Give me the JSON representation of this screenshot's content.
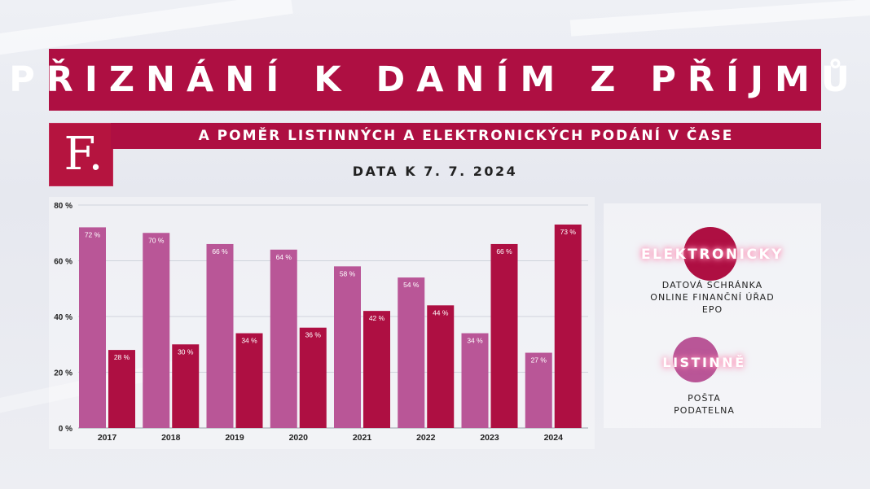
{
  "header": {
    "title": "PŘIZNÁNÍ K DANÍM Z PŘÍJMŮ",
    "subtitle": "A POMĚR LISTINNÝCH A ELEKTRONICKÝCH PODÁNÍ V ČASE",
    "logo": "F.",
    "date": "DATA K 7. 7. 2024"
  },
  "colors": {
    "brand": "#ae0f42",
    "paper": "#b95697",
    "electronic": "#ae0f42"
  },
  "legend": {
    "electronic": {
      "title": "ELEKTRONICKY",
      "lines": [
        "DATOVÁ SCHRÁNKA",
        "ONLINE FINANČNÍ ÚŘAD",
        "EPO"
      ]
    },
    "paper": {
      "title": "LISTINNĚ",
      "lines": [
        "POŠTA",
        "PODATELNA"
      ]
    }
  },
  "chart_data": {
    "type": "bar",
    "categories": [
      "2017",
      "2018",
      "2019",
      "2020",
      "2021",
      "2022",
      "2023",
      "2024"
    ],
    "series": [
      {
        "name": "LISTINNĚ",
        "values": [
          72,
          70,
          66,
          64,
          58,
          54,
          34,
          27
        ],
        "labels": [
          "72 %",
          "70 %",
          "66 %",
          "64 %",
          "58 %",
          "54 %",
          "34 %",
          "27 %"
        ]
      },
      {
        "name": "ELEKTRONICKY",
        "values": [
          28,
          30,
          34,
          36,
          42,
          44,
          66,
          73
        ],
        "labels": [
          "28 %",
          "30 %",
          "34 %",
          "36 %",
          "42 %",
          "44 %",
          "66 %",
          "73 %"
        ]
      }
    ],
    "yticks": [
      0,
      20,
      40,
      60,
      80
    ],
    "ytick_labels": [
      "0 %",
      "20 %",
      "40 %",
      "60 %",
      "80 %"
    ],
    "ylim": [
      0,
      80
    ],
    "grid": true
  }
}
